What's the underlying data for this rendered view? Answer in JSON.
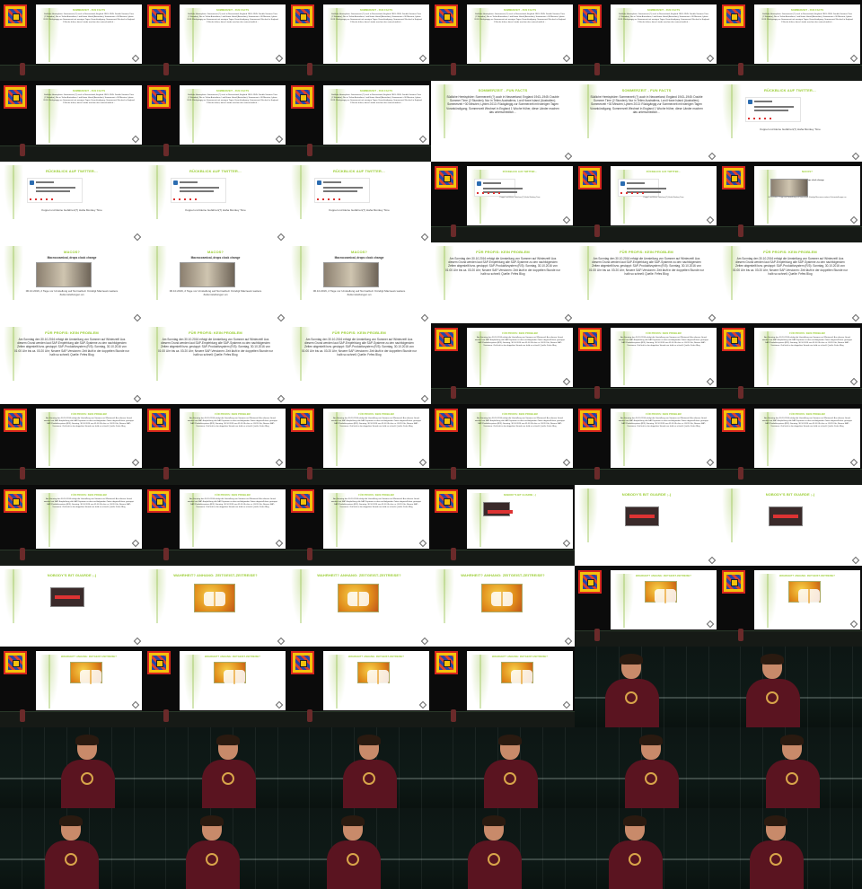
{
  "contact_sheet": {
    "columns": 6,
    "rows": 11
  },
  "slides": {
    "summer_facts": {
      "title": "SOMMERZEIT - FUN FACTS",
      "body": "Südliche Hemisphäre: Sommerzeit (?) auch in Neuseeland; England 1943–1945: Double Summer Time (2 Stunden); Nur in Teilen Australiens, Lord Howe Island (Australien); Sommerzeit +30 Minuten; Lybien 2013: Rückgängig zur Sommerzeit mit wenigen Tagen Vorankündigung; Sommerzeit Wechsel in England 1 Woche früher, diese Länder machen das unterschiedlich…"
    },
    "twitter": {
      "title": "RÜCKBLICK AUF TWITTER…",
      "tweet": "Kuppel und kleine Gefahren(?) Haha Monkey Time"
    },
    "macos": {
      "title": "MACOS?",
      "headline": "Macrocosmical, drops clock change",
      "caption": "06.10.2016, 2 Tage vor Umstellung auf Normalzeit: Kündigt Macnews weitere Zeitumstellungen an"
    },
    "sap": {
      "title": "FÜR PROFIS: KEIN PROBLEM",
      "body": "Am Sonntag den 30.10.2016 erfolgt die Umstellung von Sommer auf Winterzeit! Aus diesem Grund werden laut SAP-Empfehlung alle SAP-Systeme zu den nachfolgenden Zeiten abgestellt bzw. gestoppt: SAP-Produktivsystem (R/3): Sonntag, 30.10.2016 von 01:00 Uhr bis ca. 03:20 Uhr; Neuere SAP-Versionen: Zeit läuft in der doppelten Stunde nur halb so schnell; Quelle: Fefes Blog"
    },
    "nobody": {
      "title": "NOBODY'S BIT GUARDE ;-)"
    },
    "cartoon": {
      "title": "WAHRHEIT? ANHANG: ZEITGEIST-ZEITREISE?"
    }
  },
  "sequence": [
    "P-summer_facts",
    "P-summer_facts",
    "P-summer_facts",
    "P-summer_facts",
    "P-summer_facts",
    "P-summer_facts",
    "P-summer_facts",
    "P-summer_facts",
    "P-summer_facts",
    "F-summer_facts",
    "F-summer_facts",
    "F-twitter",
    "F-twitter",
    "F-twitter",
    "F-twitter",
    "P-twitter",
    "P-twitter",
    "P-macos",
    "F-macos",
    "F-macos",
    "F-macos",
    "F-sap",
    "F-sap",
    "F-sap",
    "F-sap",
    "F-sap",
    "F-sap",
    "P-sap",
    "P-sap",
    "P-sap",
    "P-sap",
    "P-sap",
    "P-sap",
    "P-sap",
    "P-sap",
    "P-sap",
    "P-sap",
    "P-sap",
    "P-sap",
    "P-nobody",
    "F-nobody",
    "F-nobody",
    "F-nobody",
    "F-cartoon",
    "F-cartoon",
    "F-cartoon",
    "P-cartoon",
    "P-cartoon",
    "P-cartoon",
    "P-cartoon",
    "P-cartoon",
    "P-cartoon",
    "C",
    "C",
    "C",
    "C",
    "C",
    "C",
    "C",
    "C",
    "C",
    "C",
    "C",
    "C",
    "C",
    "C"
  ]
}
